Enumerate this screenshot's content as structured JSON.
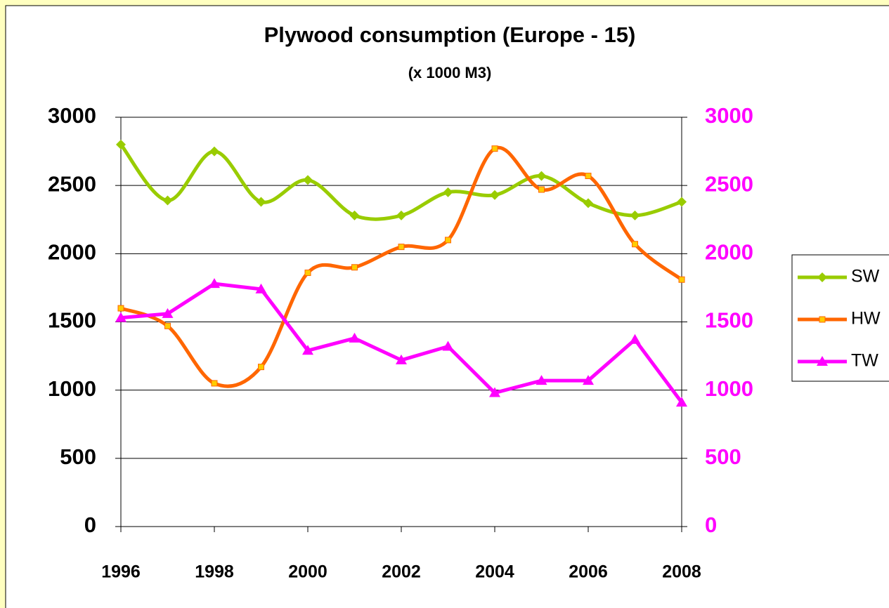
{
  "chart_data": {
    "type": "line",
    "title": "Plywood consumption (Europe - 15)",
    "subtitle": "(x 1000 M3)",
    "x": [
      1996,
      1997,
      1998,
      1999,
      2000,
      2001,
      2002,
      2003,
      2004,
      2005,
      2006,
      2007,
      2008
    ],
    "xlim": [
      1996,
      2008
    ],
    "xticks": [
      1996,
      1998,
      2000,
      2002,
      2004,
      2006,
      2008
    ],
    "ylim": [
      0,
      3000
    ],
    "yticks": [
      0,
      500,
      1000,
      1500,
      2000,
      2500,
      3000
    ],
    "y2lim": [
      0,
      3000
    ],
    "y2ticks": [
      0,
      500,
      1000,
      1500,
      2000,
      2500,
      3000
    ],
    "y2color": "#ff00ff",
    "grid": true,
    "legend": "right",
    "series": [
      {
        "name": "SW",
        "color": "#99cc00",
        "marker": "diamond",
        "smooth": true,
        "values": [
          2800,
          2390,
          2750,
          2380,
          2540,
          2280,
          2280,
          2450,
          2430,
          2570,
          2370,
          2280,
          2380
        ]
      },
      {
        "name": "HW",
        "color": "#ff6600",
        "marker": "square",
        "smooth": true,
        "values": [
          1600,
          1470,
          1050,
          1170,
          1860,
          1900,
          2050,
          2100,
          2770,
          2470,
          2570,
          2070,
          1810
        ]
      },
      {
        "name": "TW",
        "color": "#ff00ff",
        "marker": "triangle",
        "smooth": false,
        "axis": "y2",
        "values": [
          1530,
          1560,
          1780,
          1740,
          1290,
          1380,
          1220,
          1320,
          980,
          1070,
          1070,
          1370,
          910
        ]
      }
    ]
  }
}
